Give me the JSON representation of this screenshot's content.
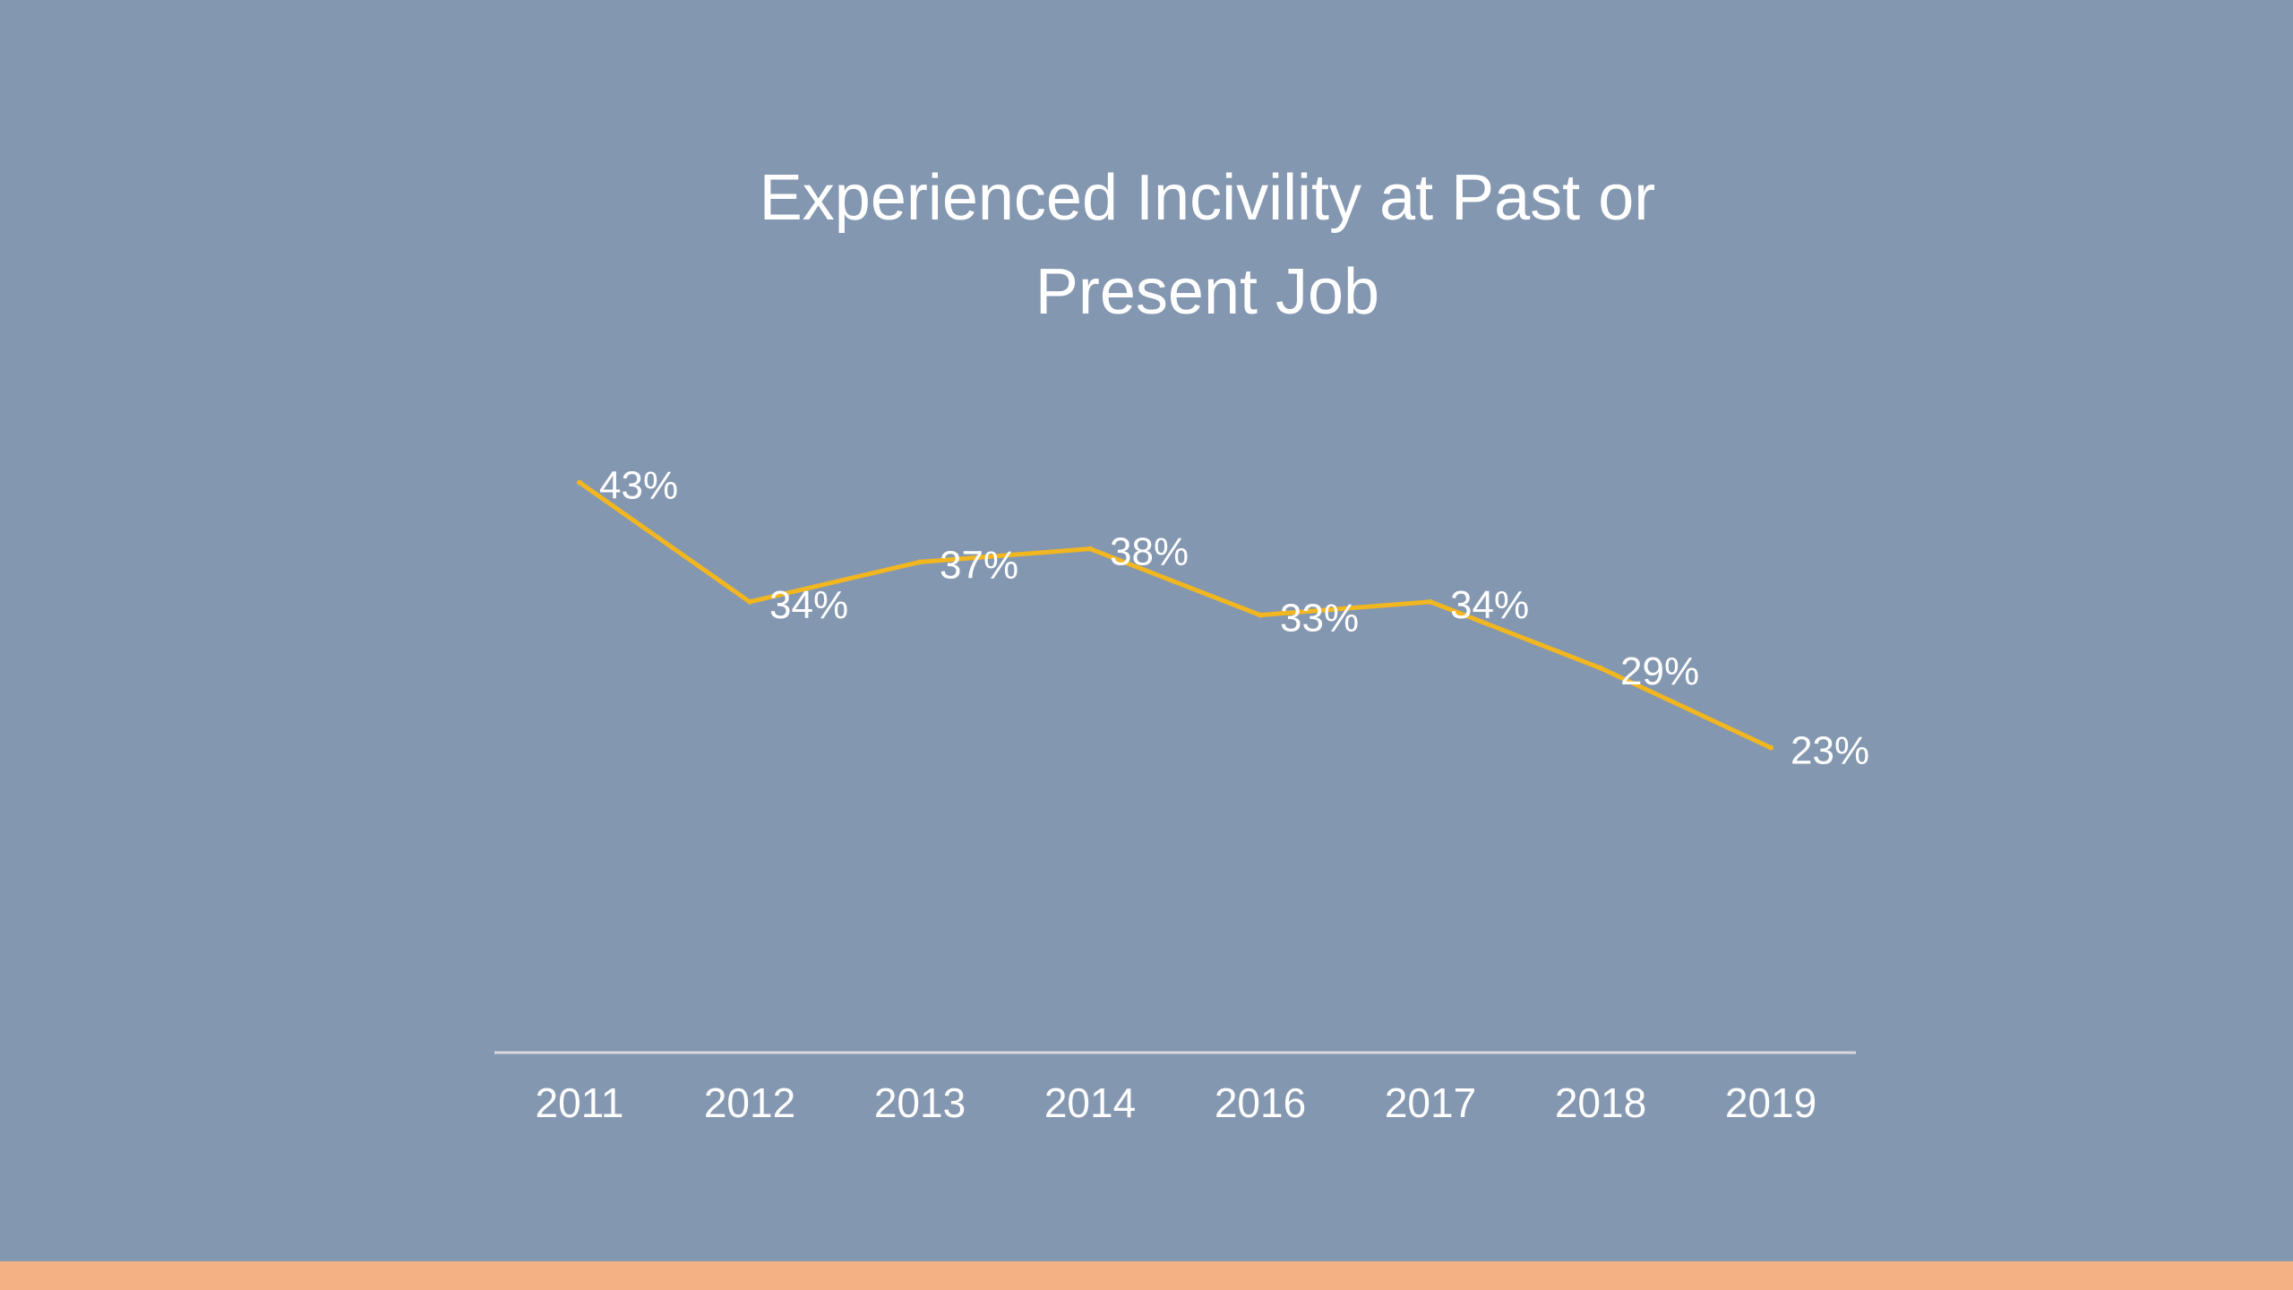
{
  "slide": {
    "background_color": "#8497b0",
    "footer_bar_color": "#f4b183"
  },
  "chart_data": {
    "type": "line",
    "title_lines": [
      "Experienced Incivility at Past or",
      "Present Job"
    ],
    "categories": [
      "2011",
      "2012",
      "2013",
      "2014",
      "2016",
      "2017",
      "2018",
      "2019"
    ],
    "series": [
      {
        "values": [
          43,
          34,
          37,
          38,
          33,
          34,
          29,
          23
        ],
        "labels": [
          "43%",
          "34%",
          "37%",
          "38%",
          "33%",
          "34%",
          "29%",
          "23%"
        ],
        "color": "#f2b61f"
      }
    ],
    "xlabel": "",
    "ylabel": "",
    "ylim": [
      0,
      50
    ],
    "grid": false,
    "legend": "none"
  }
}
